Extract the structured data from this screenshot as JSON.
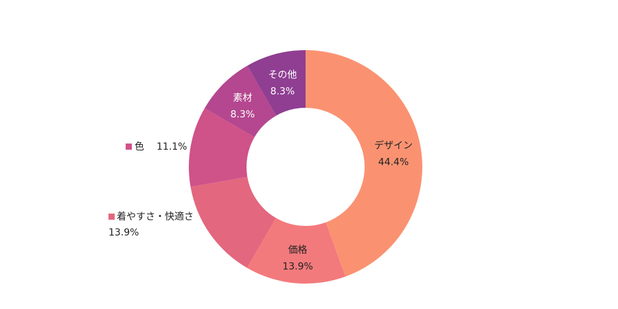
{
  "chart_data": {
    "type": "pie",
    "donut": true,
    "categories": [
      "デザイン",
      "価格",
      "着やすさ・快適さ",
      "色",
      "素材",
      "その他"
    ],
    "values": [
      44.4,
      13.9,
      13.9,
      11.1,
      8.3,
      8.3
    ],
    "value_labels": [
      "44.4%",
      "13.9%",
      "13.9%",
      "11.1%",
      "8.3%",
      "8.3%"
    ],
    "colors": [
      "#fa9271",
      "#f37a7c",
      "#e3677e",
      "#cf5289",
      "#b4478f",
      "#8f3e92"
    ],
    "label_position": [
      "inside",
      "inside",
      "outside",
      "outside",
      "inside",
      "inside"
    ]
  }
}
